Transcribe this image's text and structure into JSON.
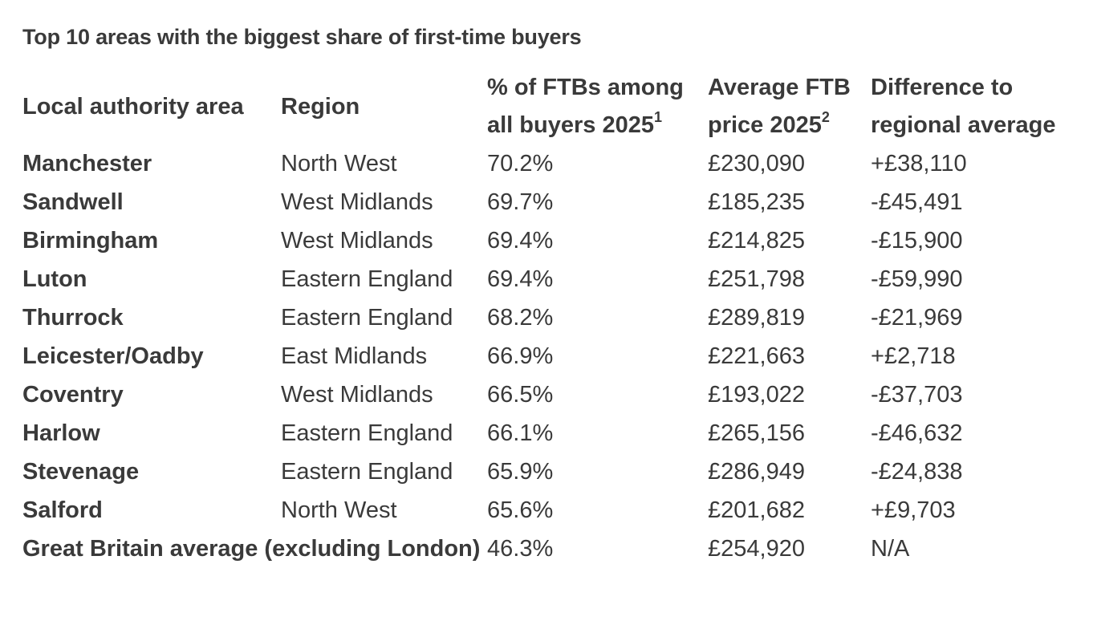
{
  "title": "Top 10 areas with the biggest share of first-time buyers",
  "headers": {
    "area": "Local authority area",
    "region": "Region",
    "share_line1": "% of FTBs among",
    "share_line2": "all buyers 2025",
    "share_note": "1",
    "price_line1": "Average FTB",
    "price_line2": "price 2025",
    "price_note": "2",
    "diff_line1": "Difference to",
    "diff_line2": "regional average"
  },
  "rows": [
    {
      "area": "Manchester",
      "region": "North West",
      "share": "70.2%",
      "price": "£230,090",
      "diff": "+£38,110"
    },
    {
      "area": "Sandwell",
      "region": "West Midlands",
      "share": "69.7%",
      "price": "£185,235",
      "diff": "-£45,491"
    },
    {
      "area": "Birmingham",
      "region": "West Midlands",
      "share": "69.4%",
      "price": "£214,825",
      "diff": "-£15,900"
    },
    {
      "area": "Luton",
      "region": "Eastern England",
      "share": "69.4%",
      "price": "£251,798",
      "diff": "-£59,990"
    },
    {
      "area": "Thurrock",
      "region": "Eastern England",
      "share": "68.2%",
      "price": "£289,819",
      "diff": "-£21,969"
    },
    {
      "area": "Leicester/Oadby",
      "region": "East Midlands",
      "share": "66.9%",
      "price": "£221,663",
      "diff": "+£2,718"
    },
    {
      "area": "Coventry",
      "region": "West Midlands",
      "share": "66.5%",
      "price": "£193,022",
      "diff": "-£37,703"
    },
    {
      "area": "Harlow",
      "region": "Eastern England",
      "share": "66.1%",
      "price": "£265,156",
      "diff": "-£46,632"
    },
    {
      "area": "Stevenage",
      "region": "Eastern England",
      "share": "65.9%",
      "price": "£286,949",
      "diff": "-£24,838"
    },
    {
      "area": "Salford",
      "region": "North West",
      "share": "65.6%",
      "price": "£201,682",
      "diff": "+£9,703"
    }
  ],
  "total": {
    "area": "Great Britain average (excluding London)",
    "share": "46.3%",
    "price": "£254,920",
    "diff": "N/A"
  }
}
